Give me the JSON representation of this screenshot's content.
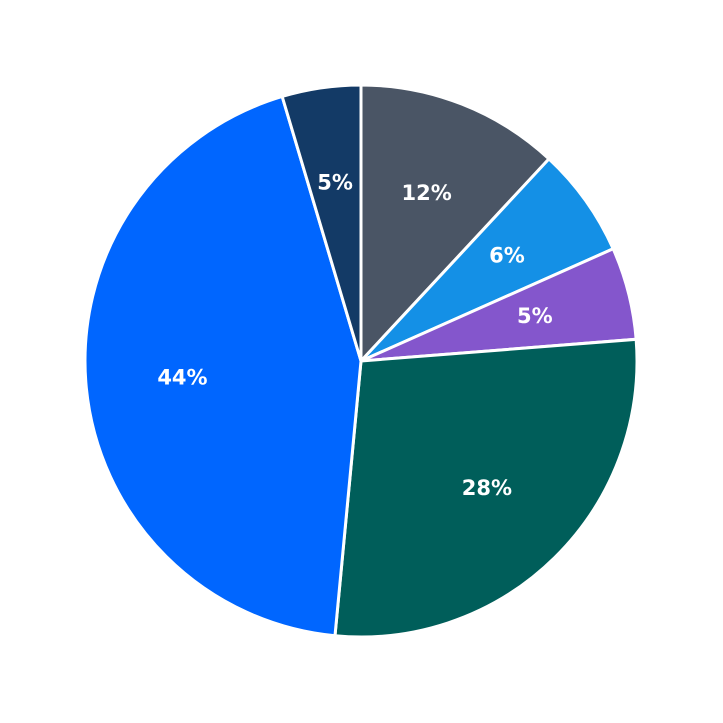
{
  "chart_data": {
    "type": "pie",
    "values": [
      11.9,
      6.4,
      5.4,
      27.7,
      43.8,
      4.6
    ],
    "value_labels": [
      "12%",
      "6%",
      "5%",
      "28%",
      "44%",
      "5%"
    ],
    "colors": [
      "#4a5565",
      "#1490e6",
      "#8456cc",
      "#005e5a",
      "#0066ff",
      "#133a66"
    ],
    "start_angle": 0,
    "direction": "clockwise"
  }
}
